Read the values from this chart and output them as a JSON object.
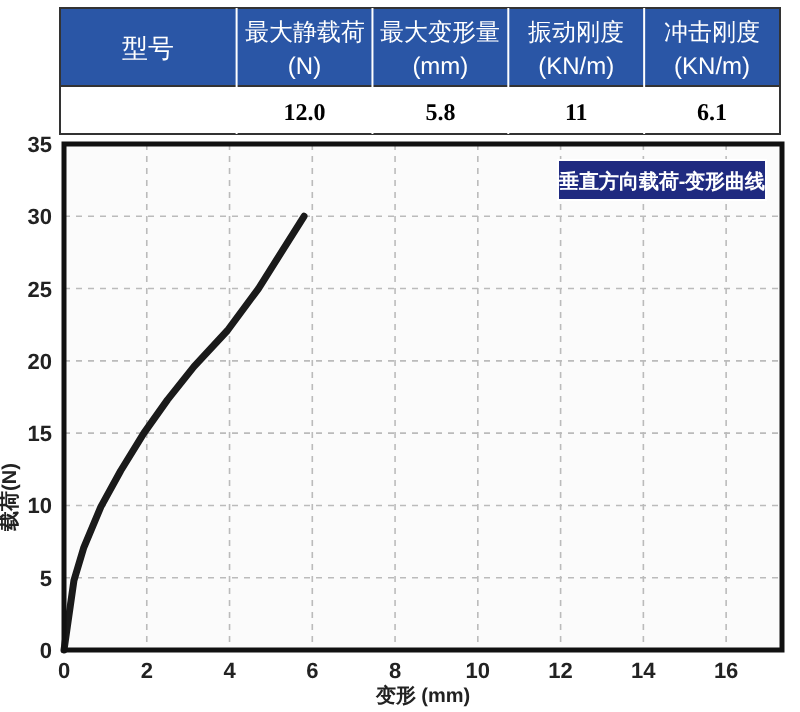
{
  "chart_data": [
    {
      "type": "other",
      "categories": [
        "型号",
        "最大静载荷(N)",
        "最大变形量(mm)",
        "振动刚度(KN/m)",
        "冲击刚度(KN/m)"
      ],
      "value_labels": [
        null,
        "12.0",
        "5.8",
        "11",
        "6.1"
      ],
      "color": "#2a56a6"
    },
    {
      "type": "line",
      "title": "垂直方向载荷-变形曲线",
      "xlabel": "变形 (mm)",
      "ylabel": "载荷(N)",
      "x": [
        0,
        0.08,
        0.24,
        0.48,
        0.89,
        1.37,
        1.93,
        2.5,
        3.14,
        3.95,
        4.7,
        5.8
      ],
      "values": [
        0,
        1.6,
        4.8,
        7.1,
        9.9,
        12.4,
        15.0,
        17.3,
        19.6,
        22.1,
        25.0,
        30
      ],
      "color": "#1a1a1a",
      "xlim": [
        0,
        17.35
      ],
      "xticks": [
        0,
        2,
        4,
        6,
        8,
        10,
        12,
        14,
        16
      ],
      "ylim": [
        0,
        35
      ],
      "yticks": [
        0,
        5,
        10,
        15,
        20,
        25,
        30,
        35
      ],
      "grid": true,
      "line_style": "solid",
      "marker": "none"
    }
  ]
}
